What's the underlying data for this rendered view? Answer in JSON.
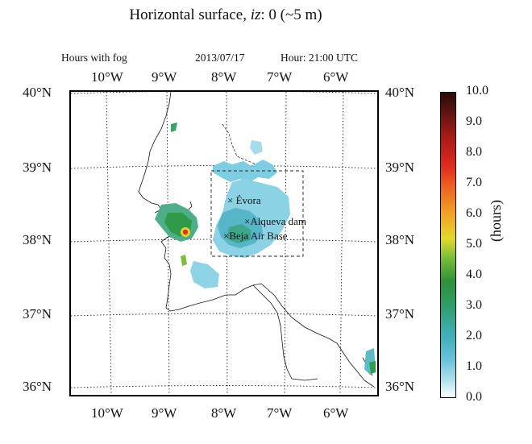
{
  "title": {
    "main": "Horizontal surface, ",
    "iz": "iz",
    "rest": ": 0 (~5 m)"
  },
  "subtitle": {
    "left": "Hours with fog",
    "center": "2013/07/17",
    "right": "Hour: 21:00 UTC"
  },
  "lon_ticks": [
    "10°W",
    "9°W",
    "8°W",
    "7°W",
    "6°W"
  ],
  "lat_ticks": [
    "40°N",
    "39°N",
    "38°N",
    "37°N",
    "36°N"
  ],
  "colorbar": {
    "label": "(hours)",
    "ticks": [
      "10.0",
      "9.0",
      "8.0",
      "7.0",
      "6.0",
      "5.0",
      "4.0",
      "3.0",
      "2.0",
      "1.0",
      "0.0"
    ],
    "range": [
      0,
      10
    ],
    "colors": [
      "#ffffff",
      "#6cc3dc",
      "#2f9e6a",
      "#7bbf3a",
      "#e3d92a",
      "#ee6a22",
      "#df2a1f",
      "#2a0a08"
    ]
  },
  "places": {
    "evora": "Évora",
    "alqueva": "Alqueva dam",
    "beja": "Beja Air Base"
  },
  "markers": {
    "symbol": "×"
  },
  "map": {
    "lon_range": [
      -10.7,
      -5.4
    ],
    "lat_range": [
      35.9,
      40.0
    ],
    "grid": true,
    "grid_style": "dotted"
  }
}
